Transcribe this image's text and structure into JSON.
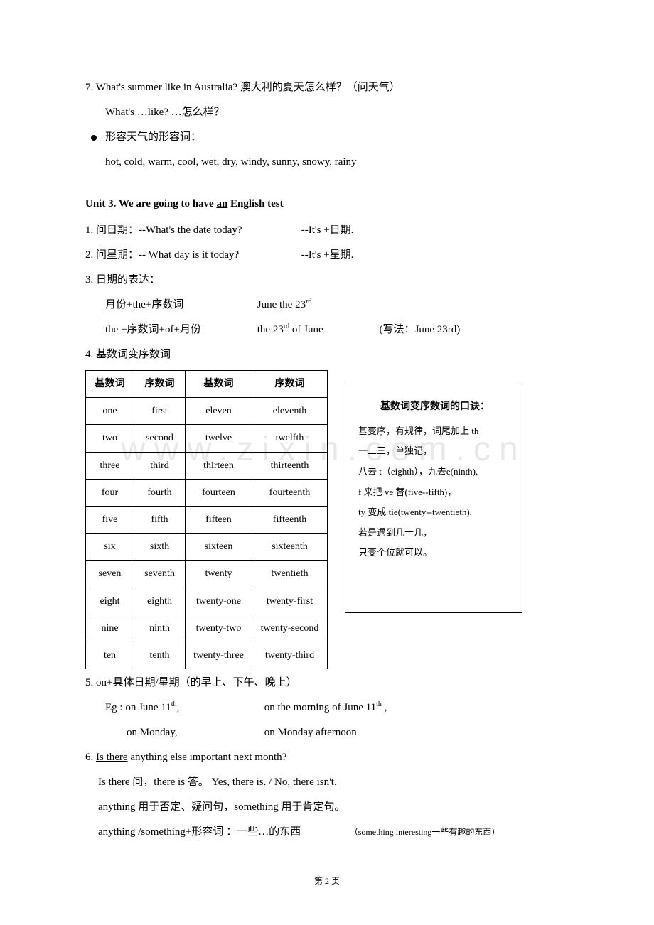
{
  "top": {
    "line7": "7. What's summer like in Australia?   澳大利的夏天怎么样？（问天气）",
    "line7b": "What's …like? …怎么样？",
    "bullet_text": "形容天气的形容词：",
    "adjectives": "hot, cold, warm, cool, wet, dry, windy, sunny, snowy, rainy"
  },
  "unit3": {
    "title_prefix": "Unit 3. We are going to have ",
    "title_an": "an",
    "title_suffix": " English test",
    "item1_label": "1.  问日期：--What's the date today?",
    "item1_answer": "--It's +日期.",
    "item2_label": "2.  问星期：-- What day is it today?",
    "item2_answer": "--It's +星期.",
    "item3": "3.  日期的表达：",
    "item3a_left": "月份+the+序数词",
    "item3a_right": "June the 23",
    "item3a_sup": "rd",
    "item3b_left": "the +序数词+of+月份",
    "item3b_mid": "the 23",
    "item3b_sup": "rd",
    "item3b_mid2": " of June",
    "item3b_note": "(写法：June 23rd)",
    "item4": "4.  基数词变序数词"
  },
  "table": {
    "headers": [
      "基数词",
      "序数词",
      "基数词",
      "序数词"
    ],
    "rows": [
      [
        "one",
        "first",
        "eleven",
        "eleventh"
      ],
      [
        "two",
        "second",
        "twelve",
        "twelfth"
      ],
      [
        "three",
        "third",
        "thirteen",
        "thirteenth"
      ],
      [
        "four",
        "fourth",
        "fourteen",
        "fourteenth"
      ],
      [
        "five",
        "fifth",
        "fifteen",
        "fifteenth"
      ],
      [
        "six",
        "sixth",
        "sixteen",
        "sixteenth"
      ],
      [
        "seven",
        "seventh",
        "twenty",
        "twentieth"
      ],
      [
        "eight",
        "eighth",
        "twenty-one",
        "twenty-first"
      ],
      [
        "nine",
        "ninth",
        "twenty-two",
        "twenty-second"
      ],
      [
        "ten",
        "tenth",
        "twenty-three",
        "twenty-third"
      ]
    ]
  },
  "tip": {
    "title": "基数词变序数词的口诀：",
    "l1": "基变序，有规律，词尾加上 th",
    "l2": "一二三，单独记，",
    "l3": "八去 t（eighth），九去e(ninth),",
    "l4": "f 来把 ve 替(five--fifth)，",
    "l5": "ty 变成 tie(twenty--twentieth),",
    "l6": "若是遇到几十几，",
    "l7": "只变个位就可以。"
  },
  "bottom": {
    "item5": "5.   on+具体日期/星期（的早上、下午、晚上）",
    "item5eg1_a": "Eg : on June 11",
    "item5eg1_sup": "th",
    "item5eg1_b": ",",
    "item5eg1_c": "on the morning of June 11",
    "item5eg1_sup2": "th",
    "item5eg1_d": " ,",
    "item5eg2_a": "on Monday,",
    "item5eg2_b": "on Monday afternoon",
    "item6_prefix": "6. ",
    "item6_underline": "Is there",
    "item6_rest": " anything else important next month?",
    "item6b": "Is there 问，there is 答。 Yes, there is. / No, there isn't.",
    "item6c": "anything 用于否定、疑问句，something 用于肯定句。",
    "item6d_main": "anything /something+形容词 ：一些…的东西",
    "item6d_note": "（something interesting一些有趣的东西）"
  },
  "footer": "第 2 页",
  "watermark": "www.zixin.com.cn"
}
